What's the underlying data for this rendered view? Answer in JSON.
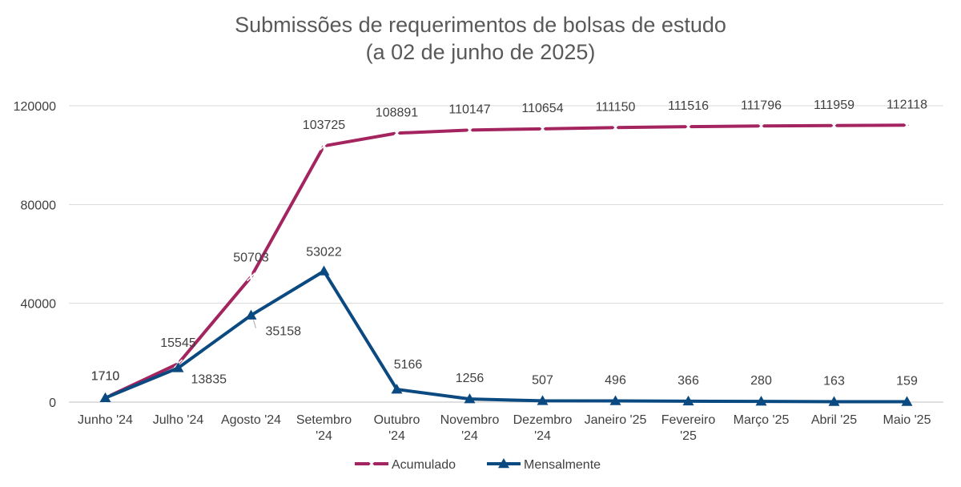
{
  "chart_data": {
    "type": "line",
    "title": "Submissões de requerimentos de bolsas de estudo",
    "subtitle": "(a 02 de junho de 2025)",
    "xlabel": "",
    "ylabel": "",
    "categories": [
      [
        "Junho '24"
      ],
      [
        "Julho '24"
      ],
      [
        "Agosto '24"
      ],
      [
        "Setembro",
        "'24"
      ],
      [
        "Outubro",
        "'24"
      ],
      [
        "Novembro",
        "'24"
      ],
      [
        "Dezembro",
        "'24"
      ],
      [
        "Janeiro '25"
      ],
      [
        "Fevereiro",
        "'25"
      ],
      [
        "Março '25"
      ],
      [
        "Abril '25"
      ],
      [
        "Maio '25"
      ]
    ],
    "ylim": [
      0,
      120000
    ],
    "yticks": [
      "0",
      "40000",
      "80000",
      "120000"
    ],
    "grid": true,
    "legend_position": "bottom",
    "series": [
      {
        "name": "Acumulado",
        "color": "#A3245F",
        "marker": "star",
        "values": [
          1710,
          15545,
          50703,
          103725,
          108891,
          110147,
          110654,
          111150,
          111516,
          111796,
          111959,
          112118
        ]
      },
      {
        "name": "Mensalmente",
        "color": "#0B4A80",
        "marker": "triangle",
        "values": [
          1710,
          13835,
          35158,
          53022,
          5166,
          1256,
          507,
          496,
          366,
          280,
          163,
          159
        ]
      }
    ]
  }
}
